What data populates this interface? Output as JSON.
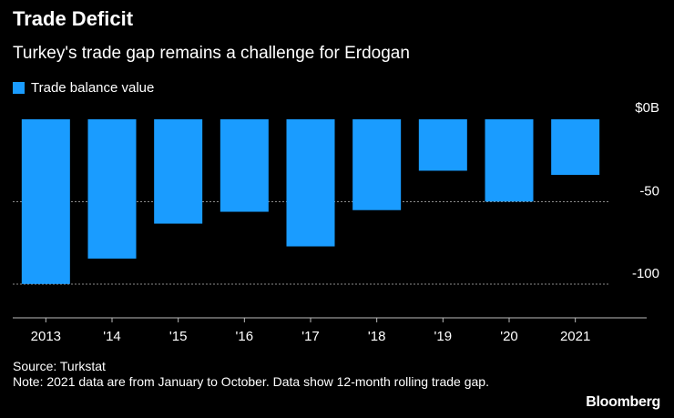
{
  "title": "Trade Deficit",
  "subtitle": "Turkey's trade gap remains a challenge for Erdogan",
  "legend": {
    "label": "Trade balance value",
    "color": "#1a9cff"
  },
  "source": "Source: Turkstat",
  "note": "Note: 2021 data are from January to October. Data show 12-month rolling trade gap.",
  "logo": "Bloomberg",
  "chart_data": {
    "type": "bar",
    "categories": [
      "2013",
      "'14",
      "'15",
      "'16",
      "'17",
      "'18",
      "'19",
      "'20",
      "2021"
    ],
    "series": [
      {
        "name": "Trade balance value",
        "values": [
          -99.9,
          -84.5,
          -63.3,
          -56.1,
          -77.1,
          -55.1,
          -31.2,
          -49.9,
          -33.7
        ],
        "color": "#1a9cff"
      }
    ],
    "y_ticks": [
      {
        "value": 0,
        "label": "$0B"
      },
      {
        "value": -50,
        "label": "-50"
      },
      {
        "value": -100,
        "label": "-100"
      }
    ],
    "ylim": [
      -120,
      0
    ],
    "grid": true,
    "legend_position": "top-left"
  }
}
